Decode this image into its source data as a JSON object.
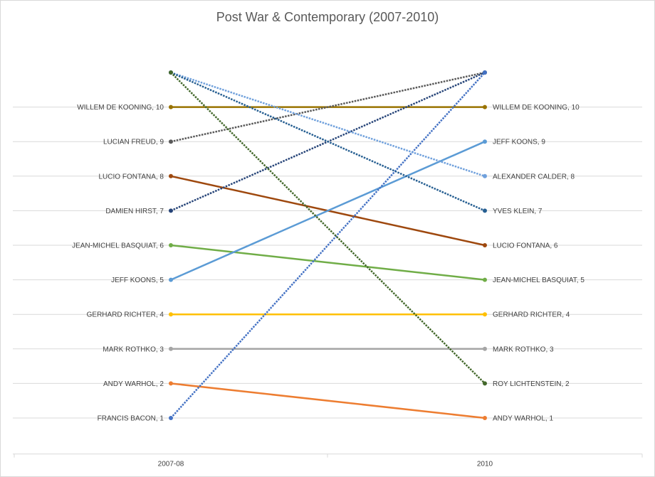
{
  "chart_data": {
    "type": "line",
    "title": "Post War & Contemporary (2007-2010)",
    "categories": [
      "2007-08",
      "2010"
    ],
    "xlabel": "",
    "ylabel": "",
    "ylim": [
      0,
      11
    ],
    "grid": true,
    "legend": "none",
    "series": [
      {
        "name": "WILLEM DE KOONING",
        "values": [
          10,
          10
        ],
        "color": "#997300",
        "dashed": false,
        "labels": [
          "WILLEM DE KOONING, 10",
          "WILLEM DE KOONING, 10"
        ]
      },
      {
        "name": "LUCIAN FREUD",
        "values": [
          9,
          11
        ],
        "color": "#595959",
        "dashed": true,
        "labels": [
          "LUCIAN FREUD, 9",
          ""
        ]
      },
      {
        "name": "LUCIO FONTANA",
        "values": [
          8,
          6
        ],
        "color": "#9e480e",
        "dashed": false,
        "labels": [
          "LUCIO FONTANA, 8",
          "LUCIO FONTANA, 6"
        ]
      },
      {
        "name": "DAMIEN HIRST",
        "values": [
          7,
          11
        ],
        "color": "#264478",
        "dashed": true,
        "labels": [
          "DAMIEN HIRST, 7",
          ""
        ]
      },
      {
        "name": "JEAN-MICHEL BASQUIAT",
        "values": [
          6,
          5
        ],
        "color": "#70ad47",
        "dashed": false,
        "labels": [
          "JEAN-MICHEL BASQUIAT, 6",
          "JEAN-MICHEL BASQUIAT, 5"
        ]
      },
      {
        "name": "JEFF KOONS",
        "values": [
          5,
          9
        ],
        "color": "#5b9bd5",
        "dashed": false,
        "labels": [
          "JEFF KOONS, 5",
          "JEFF KOONS, 9"
        ]
      },
      {
        "name": "GERHARD RICHTER",
        "values": [
          4,
          4
        ],
        "color": "#ffc000",
        "dashed": false,
        "labels": [
          "GERHARD RICHTER, 4",
          "GERHARD RICHTER, 4"
        ]
      },
      {
        "name": "MARK ROTHKO",
        "values": [
          3,
          3
        ],
        "color": "#a5a5a5",
        "dashed": false,
        "labels": [
          "MARK ROTHKO, 3",
          "MARK ROTHKO, 3"
        ]
      },
      {
        "name": "ANDY WARHOL",
        "values": [
          2,
          1
        ],
        "color": "#ed7d31",
        "dashed": false,
        "labels": [
          "ANDY WARHOL, 2",
          "ANDY WARHOL, 1"
        ]
      },
      {
        "name": "FRANCIS BACON",
        "values": [
          1,
          11
        ],
        "color": "#4472c4",
        "dashed": true,
        "labels": [
          "FRANCIS BACON, 1",
          ""
        ]
      },
      {
        "name": "ALEXANDER CALDER",
        "values": [
          11,
          8
        ],
        "color": "#6fa0dc",
        "dashed": true,
        "labels": [
          "",
          "ALEXANDER CALDER, 8"
        ]
      },
      {
        "name": "YVES KLEIN",
        "values": [
          11,
          7
        ],
        "color": "#255e91",
        "dashed": true,
        "labels": [
          "",
          "YVES KLEIN, 7"
        ]
      },
      {
        "name": "ROY LICHTENSTEIN",
        "values": [
          11,
          2
        ],
        "color": "#43682b",
        "dashed": true,
        "labels": [
          "",
          "ROY LICHTENSTEIN, 2"
        ]
      }
    ]
  }
}
